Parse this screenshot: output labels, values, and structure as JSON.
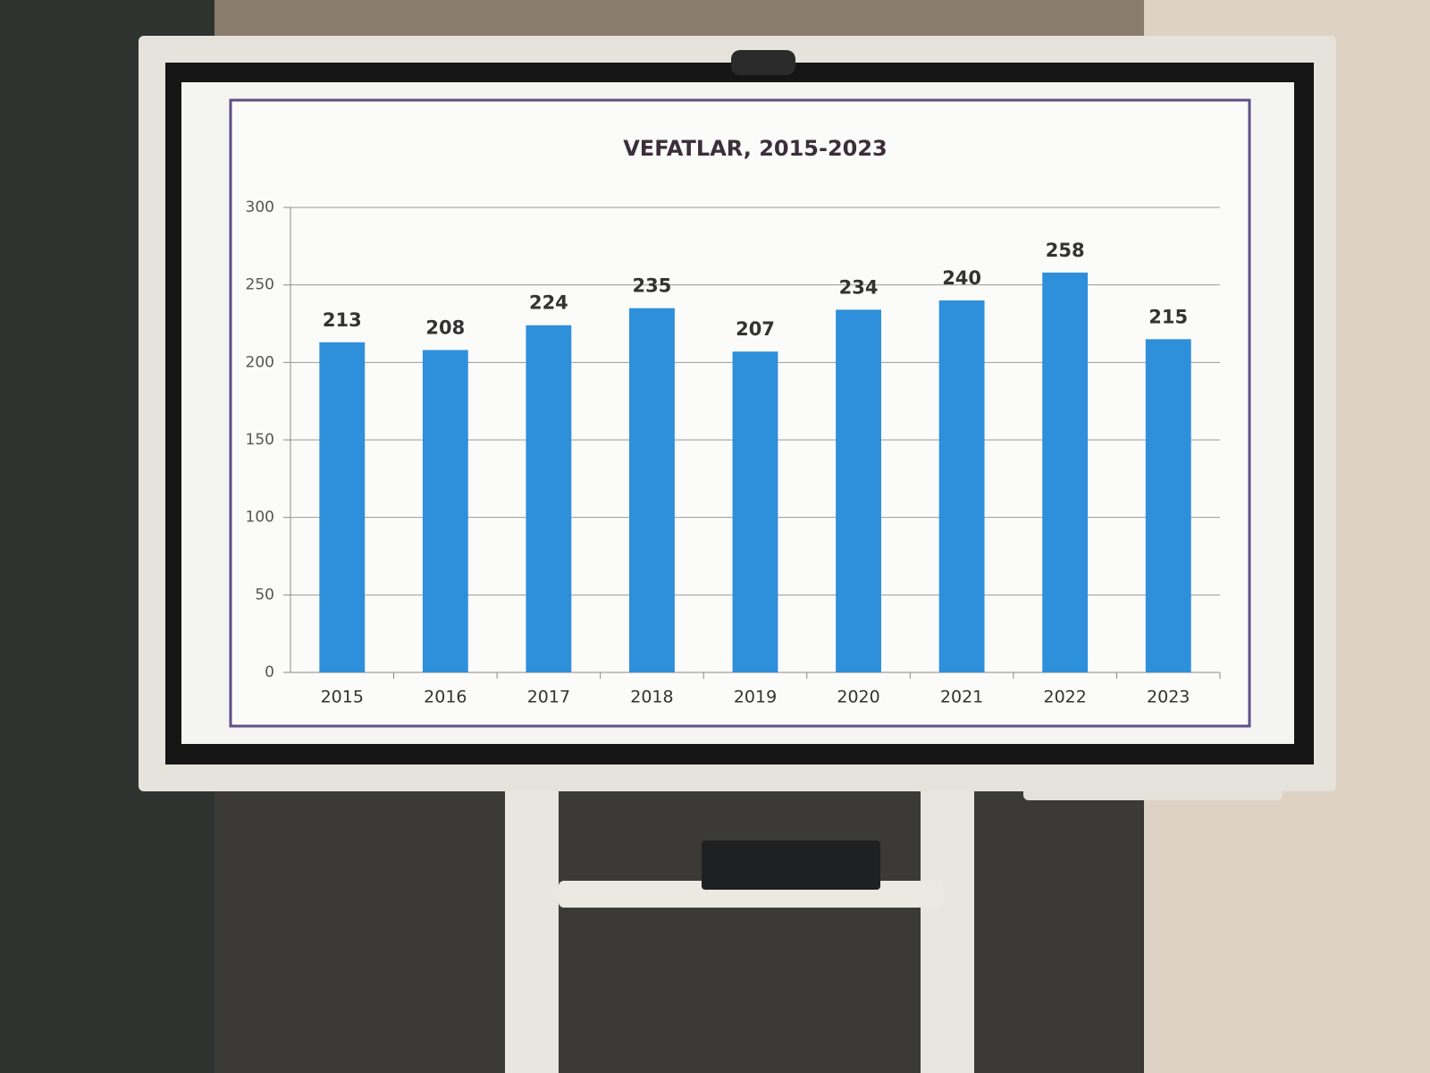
{
  "chart_data": {
    "type": "bar",
    "title": "VEFATLAR, 2015-2023",
    "categories": [
      "2015",
      "2016",
      "2017",
      "2018",
      "2019",
      "2020",
      "2021",
      "2022",
      "2023"
    ],
    "values": [
      213,
      208,
      224,
      235,
      207,
      234,
      240,
      258,
      215
    ],
    "color": "#2e8fdb",
    "ylim": [
      0,
      300
    ],
    "yticks": [
      0,
      50,
      100,
      150,
      200,
      250,
      300
    ],
    "grid": true
  }
}
